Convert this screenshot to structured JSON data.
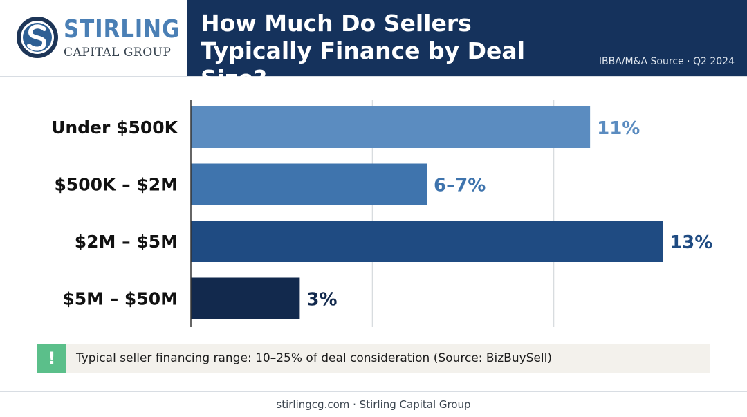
{
  "brand": {
    "name": "STIRLING",
    "subname": "CAPITAL GROUP",
    "logo_icon": "circular-s-logo-icon",
    "colors": {
      "name": "#4a7fb5",
      "mark_dark": "#1d3557",
      "mark_light": "#6a9fd0"
    }
  },
  "header": {
    "title": "How Much Do Sellers Typically Finance by Deal Size?",
    "source": "IBBA/M&A Source · Q2 2024",
    "background": "#15325c"
  },
  "chart_data": {
    "type": "bar",
    "orientation": "horizontal",
    "categories": [
      "Under $500K",
      "$500K – $2M",
      "$2M – $5M",
      "$5M – $50M"
    ],
    "values": [
      11,
      6.5,
      13,
      3
    ],
    "value_labels": [
      "11%",
      "6–7%",
      "13%",
      "3%"
    ],
    "colors": [
      "#5b8cc0",
      "#3f74ad",
      "#1f4b82",
      "#12294d"
    ],
    "label_colors": [
      "#5b8cc0",
      "#3f74ad",
      "#1f4b82",
      "#12294d"
    ],
    "xlim": [
      0,
      15
    ],
    "grid": true,
    "title": "",
    "xlabel": "",
    "ylabel": ""
  },
  "callout": {
    "icon": "exclamation-icon",
    "icon_glyph": "!",
    "text": "Typical seller financing range: 10–25% of deal consideration (Source: BizBuySell)"
  },
  "footer": {
    "text": "stirlingcg.com · Stirling Capital Group"
  }
}
